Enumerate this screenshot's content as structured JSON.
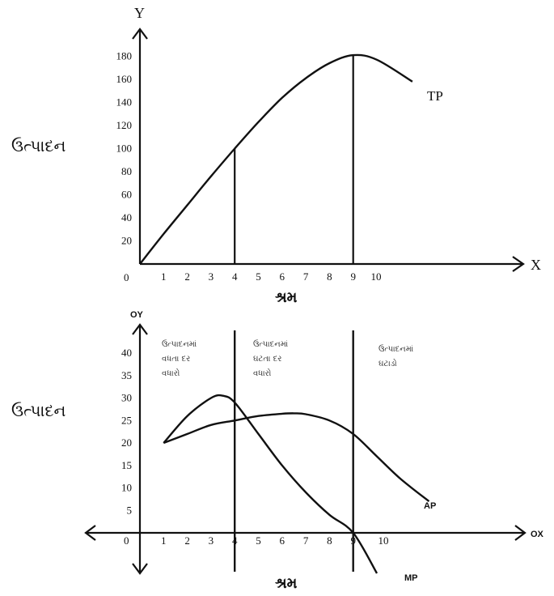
{
  "chart_data": [
    {
      "type": "line",
      "y_axis_name": "Y",
      "x_axis_name": "X",
      "ylabel": "ઉત્પાદન",
      "xlabel": "શ્રમ",
      "y_ticks": [
        20,
        40,
        60,
        80,
        100,
        120,
        140,
        160,
        180
      ],
      "x_ticks": [
        1,
        2,
        3,
        4,
        5,
        6,
        7,
        8,
        9,
        10
      ],
      "origin_label": "0",
      "xlim": [
        0,
        15
      ],
      "ylim": [
        0,
        200
      ],
      "series": [
        {
          "name": "TP",
          "x": [
            0,
            1,
            2,
            3,
            4,
            5,
            6,
            7,
            8,
            9,
            10,
            11.5
          ],
          "y": [
            0,
            26,
            51,
            76,
            100,
            123,
            144,
            161,
            174,
            181,
            177,
            158
          ]
        }
      ],
      "reference_lines_x": [
        4,
        9
      ]
    },
    {
      "type": "line",
      "y_axis_name": "OY",
      "x_axis_name": "OX",
      "ylabel": "ઉત્પાદન",
      "xlabel": "શ્રમ",
      "y_ticks": [
        5,
        10,
        15,
        20,
        25,
        30,
        35,
        40
      ],
      "x_ticks": [
        1,
        2,
        3,
        4,
        5,
        6,
        7,
        8,
        9,
        10
      ],
      "origin_label": "0",
      "xlim": [
        -2,
        15
      ],
      "ylim": [
        -15,
        45
      ],
      "stage_labels": [
        "ઉત્પાદનમાં વધતા દર વધારો",
        "ઉત્પાદનમાં ઘટતા દર વધારો",
        "ઉત્પાદનમાં ઘટાડો"
      ],
      "series": [
        {
          "name": "MP",
          "x": [
            1,
            2,
            3,
            3.5,
            4,
            5,
            6,
            7,
            8,
            9,
            10
          ],
          "y": [
            20,
            26,
            30,
            30.5,
            29,
            22,
            15,
            9,
            4,
            0,
            -9
          ]
        },
        {
          "name": "AP",
          "x": [
            1,
            2,
            3,
            4,
            5,
            6,
            6.5,
            7,
            8,
            9,
            10,
            11,
            12.2
          ],
          "y": [
            20,
            22,
            24,
            25,
            26,
            26.5,
            26.6,
            26.4,
            25,
            22,
            17,
            12,
            7
          ]
        }
      ],
      "reference_lines_x": [
        4,
        9
      ]
    }
  ]
}
